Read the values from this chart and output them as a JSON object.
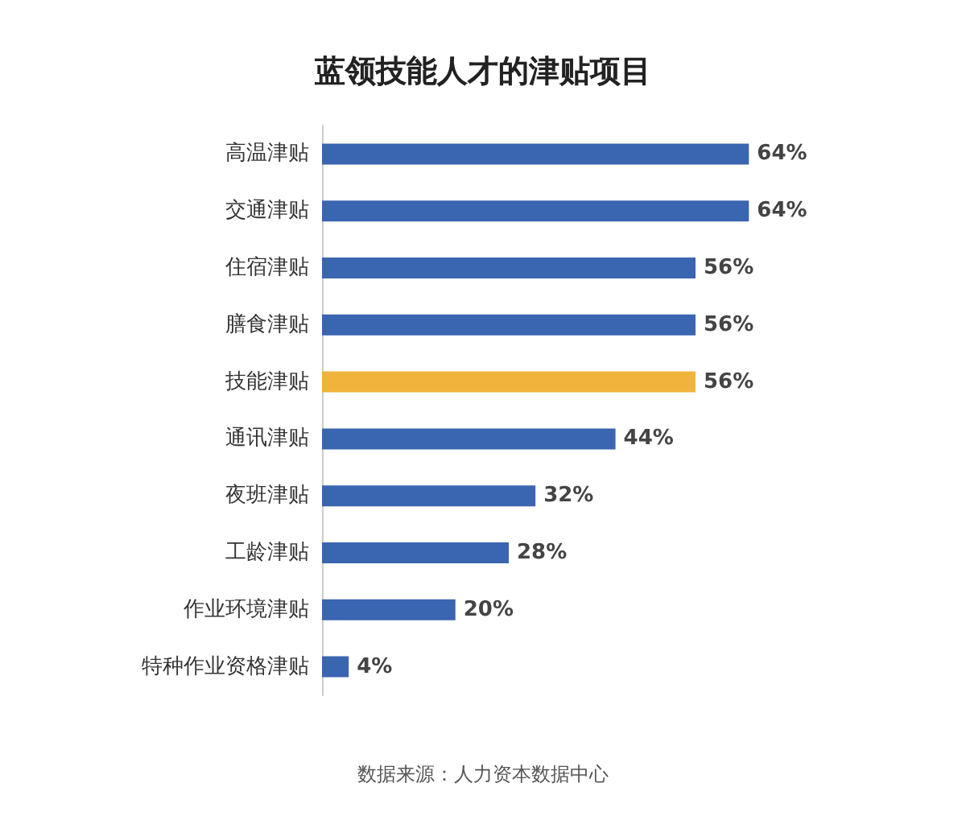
{
  "chart_data": {
    "type": "bar",
    "orientation": "horizontal",
    "title": "蓝领技能人才的津贴项目",
    "categories": [
      "高温津贴",
      "交通津贴",
      "住宿津贴",
      "膳食津贴",
      "技能津贴",
      "通讯津贴",
      "夜班津贴",
      "工龄津贴",
      "作业环境津贴",
      "特种作业资格津贴"
    ],
    "values": [
      64,
      64,
      56,
      56,
      56,
      44,
      32,
      28,
      20,
      4
    ],
    "colors": [
      "#3a65b0",
      "#3a65b0",
      "#3a65b0",
      "#3a65b0",
      "#f0b43c",
      "#3a65b0",
      "#3a65b0",
      "#3a65b0",
      "#3a65b0",
      "#3a65b0"
    ],
    "value_labels": [
      "64%",
      "64%",
      "56%",
      "56%",
      "56%",
      "44%",
      "32%",
      "28%",
      "20%",
      "4%"
    ],
    "annotations": [
      "数据来源：人力资本数据中心"
    ]
  }
}
